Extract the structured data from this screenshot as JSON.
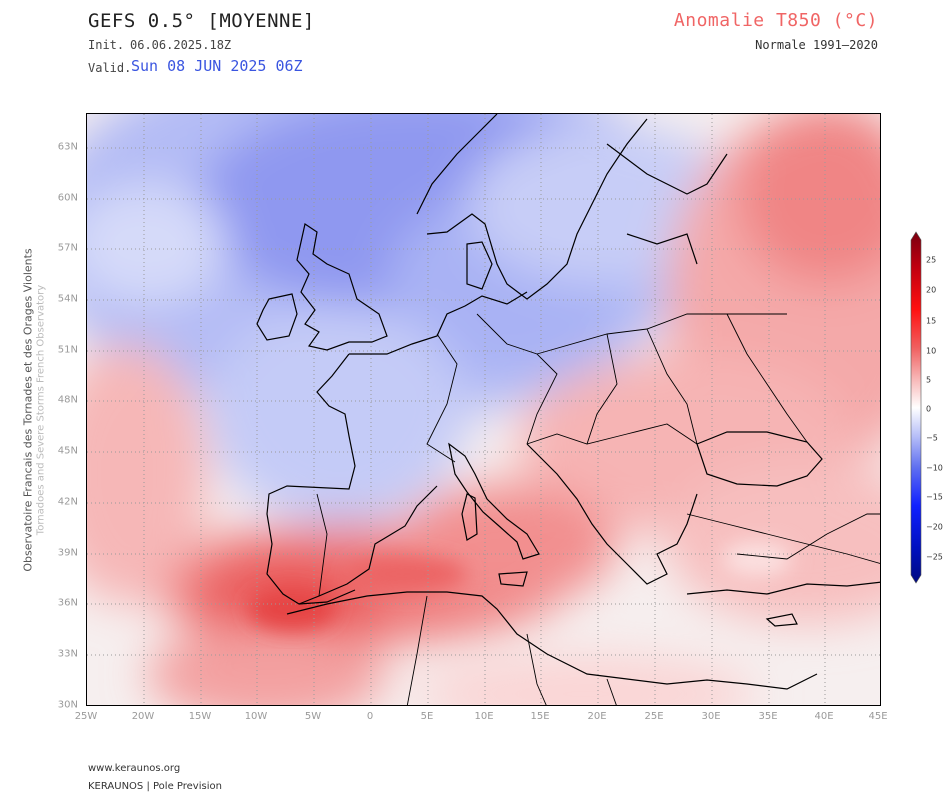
{
  "header": {
    "title": "GEFS 0.5° [MOYENNE]",
    "init_label": "Init.",
    "init_value": "06.06.2025.18Z",
    "valid_label": "Valid.",
    "valid_value": "Sun 08 JUN 2025 06Z",
    "parameter": "Anomalie T850 (°C)",
    "normal_period": "Normale 1991–2020"
  },
  "side": {
    "org": "Observatoire Francais des Tornades et des Orages Violents",
    "org_en": "Tornadoes and Severe Storms French Observatory"
  },
  "map": {
    "region": "Europe",
    "lat_labels": [
      "63N",
      "60N",
      "57N",
      "54N",
      "51N",
      "48N",
      "45N",
      "42N",
      "39N",
      "36N",
      "33N",
      "30N"
    ],
    "lon_labels": [
      "25W",
      "20W",
      "15W",
      "10W",
      "5W",
      "0",
      "5E",
      "10E",
      "15E",
      "20E",
      "25E",
      "30E",
      "35E",
      "40E",
      "45E"
    ],
    "colors": {
      "cold_strong": "#7b84ee",
      "cold": "#aab3f4",
      "cold_light": "#d6dbfa",
      "neutral": "#f6f0f0",
      "warm_light": "#fbd2d2",
      "warm": "#f6a1a1",
      "warm_strong": "#ee6d6d",
      "hot": "#e84848",
      "coastline": "#000000",
      "grid": "#9a9a9a"
    }
  },
  "colorbar": {
    "labels": [
      "25",
      "20",
      "15",
      "10",
      "5",
      "0",
      "−5",
      "−10",
      "−15",
      "−20",
      "−25"
    ],
    "colors": [
      "#7a0010",
      "#c00010",
      "#ff1010",
      "#f06060",
      "#f8b8b8",
      "#ffffff",
      "#b8c0f8",
      "#6070f0",
      "#1020ff",
      "#0010c0",
      "#000a80"
    ]
  },
  "footer": {
    "url": "www.keraunos.org",
    "brand": "KERAUNOS | Pole Prevision"
  }
}
